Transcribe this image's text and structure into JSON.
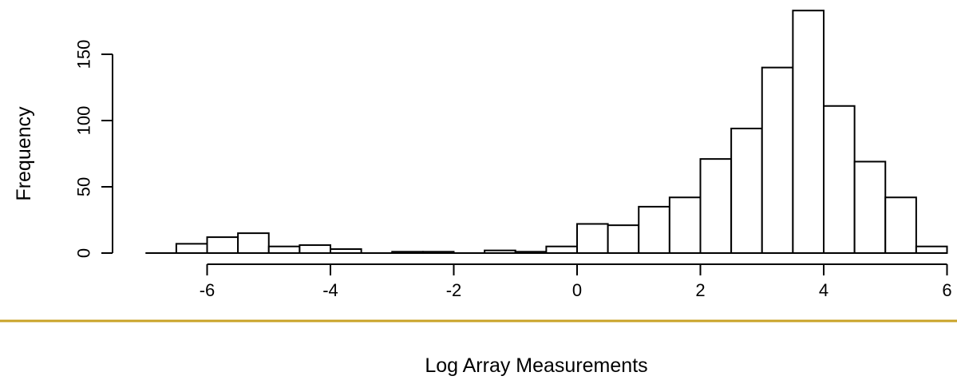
{
  "chart_data": {
    "type": "bar",
    "subtype": "histogram",
    "xlabel": "Log Array Measurements",
    "ylabel": "Frequency",
    "bin_width": 0.5,
    "bins": [
      {
        "x0": -6.5,
        "x1": -6.0,
        "count": 7
      },
      {
        "x0": -6.0,
        "x1": -5.5,
        "count": 12
      },
      {
        "x0": -5.5,
        "x1": -5.0,
        "count": 15
      },
      {
        "x0": -5.0,
        "x1": -4.5,
        "count": 5
      },
      {
        "x0": -4.5,
        "x1": -4.0,
        "count": 6
      },
      {
        "x0": -4.0,
        "x1": -3.5,
        "count": 3
      },
      {
        "x0": -3.5,
        "x1": -3.0,
        "count": 0
      },
      {
        "x0": -3.0,
        "x1": -2.5,
        "count": 1
      },
      {
        "x0": -2.5,
        "x1": -2.0,
        "count": 1
      },
      {
        "x0": -2.0,
        "x1": -1.5,
        "count": 0
      },
      {
        "x0": -1.5,
        "x1": -1.0,
        "count": 2
      },
      {
        "x0": -1.0,
        "x1": -0.5,
        "count": 1
      },
      {
        "x0": -0.5,
        "x1": 0.0,
        "count": 5
      },
      {
        "x0": 0.0,
        "x1": 0.5,
        "count": 22
      },
      {
        "x0": 0.5,
        "x1": 1.0,
        "count": 21
      },
      {
        "x0": 1.0,
        "x1": 1.5,
        "count": 35
      },
      {
        "x0": 1.5,
        "x1": 2.0,
        "count": 42
      },
      {
        "x0": 2.0,
        "x1": 2.5,
        "count": 71
      },
      {
        "x0": 2.5,
        "x1": 3.0,
        "count": 94
      },
      {
        "x0": 3.0,
        "x1": 3.5,
        "count": 140
      },
      {
        "x0": 3.5,
        "x1": 4.0,
        "count": 183
      },
      {
        "x0": 4.0,
        "x1": 4.5,
        "count": 111
      },
      {
        "x0": 4.5,
        "x1": 5.0,
        "count": 69
      },
      {
        "x0": 5.0,
        "x1": 5.5,
        "count": 42
      },
      {
        "x0": 5.5,
        "x1": 6.0,
        "count": 5
      }
    ],
    "xlim": [
      -7,
      6
    ],
    "ylim": [
      0,
      183
    ],
    "x_ticks": [
      -6,
      -4,
      -2,
      0,
      2,
      4,
      6
    ],
    "x_tick_labels": [
      "-6",
      "-4",
      "-2",
      "0",
      "2",
      "4",
      "6"
    ],
    "y_ticks": [
      0,
      50,
      100,
      150
    ],
    "y_tick_labels": [
      "0",
      "50",
      "100",
      "150"
    ],
    "grid": false,
    "colors": {
      "bar_fill": "#ffffff",
      "bar_stroke": "#000000",
      "separator": "#c9a227"
    }
  }
}
